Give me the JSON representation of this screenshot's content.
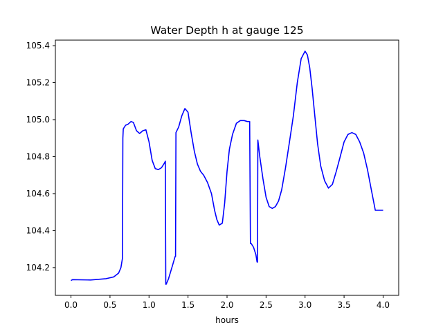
{
  "chart_data": {
    "type": "line",
    "title": "Water Depth h at gauge 125",
    "xlabel": "hours",
    "ylabel": "",
    "xlim": [
      -0.2,
      4.2
    ],
    "ylim": [
      104.05,
      105.43
    ],
    "xticks": [
      0.0,
      0.5,
      1.0,
      1.5,
      2.0,
      2.5,
      3.0,
      3.5,
      4.0
    ],
    "xtick_labels": [
      "0.0",
      "0.5",
      "1.0",
      "1.5",
      "2.0",
      "2.5",
      "3.0",
      "3.5",
      "4.0"
    ],
    "yticks": [
      104.2,
      104.4,
      104.6,
      104.8,
      105.0,
      105.2,
      105.4
    ],
    "ytick_labels": [
      "104.2",
      "104.4",
      "104.6",
      "104.8",
      "105.0",
      "105.2",
      "105.4"
    ],
    "grid": false,
    "legend": "none",
    "series": [
      {
        "color": "#0000ff",
        "x": [
          0.0,
          0.02,
          0.25,
          0.45,
          0.55,
          0.61,
          0.64,
          0.66,
          0.665,
          0.67,
          0.7,
          0.73,
          0.77,
          0.8,
          0.84,
          0.88,
          0.92,
          0.96,
          1.0,
          1.04,
          1.08,
          1.12,
          1.16,
          1.19,
          1.21,
          1.215,
          1.22,
          1.25,
          1.3,
          1.335,
          1.34,
          1.345,
          1.38,
          1.42,
          1.46,
          1.5,
          1.54,
          1.58,
          1.62,
          1.66,
          1.7,
          1.75,
          1.8,
          1.84,
          1.87,
          1.9,
          1.94,
          1.97,
          2.0,
          2.03,
          2.07,
          2.12,
          2.17,
          2.22,
          2.26,
          2.29,
          2.3,
          2.305,
          2.31,
          2.34,
          2.37,
          2.385,
          2.39,
          2.395,
          2.42,
          2.46,
          2.5,
          2.54,
          2.58,
          2.62,
          2.66,
          2.7,
          2.75,
          2.8,
          2.85,
          2.9,
          2.95,
          3.0,
          3.03,
          3.06,
          3.09,
          3.12,
          3.16,
          3.2,
          3.25,
          3.3,
          3.35,
          3.4,
          3.45,
          3.5,
          3.55,
          3.6,
          3.65,
          3.7,
          3.75,
          3.8,
          3.85,
          3.9,
          3.95,
          4.0
        ],
        "y": [
          104.13,
          104.135,
          104.133,
          104.14,
          104.15,
          104.17,
          104.2,
          104.25,
          104.9,
          104.95,
          104.97,
          104.975,
          104.99,
          104.985,
          104.94,
          104.925,
          104.94,
          104.945,
          104.88,
          104.78,
          104.735,
          104.73,
          104.74,
          104.76,
          104.775,
          104.11,
          104.11,
          104.14,
          104.21,
          104.26,
          104.26,
          104.93,
          104.96,
          105.02,
          105.06,
          105.04,
          104.93,
          104.83,
          104.76,
          104.72,
          104.7,
          104.66,
          104.6,
          104.51,
          104.46,
          104.43,
          104.44,
          104.55,
          104.72,
          104.84,
          104.92,
          104.98,
          104.995,
          104.995,
          104.99,
          104.99,
          104.33,
          104.33,
          104.33,
          104.31,
          104.27,
          104.23,
          104.23,
          104.89,
          104.8,
          104.68,
          104.58,
          104.53,
          104.52,
          104.53,
          104.56,
          104.62,
          104.74,
          104.88,
          105.02,
          105.2,
          105.33,
          105.37,
          105.35,
          105.28,
          105.17,
          105.04,
          104.87,
          104.75,
          104.67,
          104.63,
          104.65,
          104.72,
          104.8,
          104.88,
          104.92,
          104.93,
          104.92,
          104.88,
          104.82,
          104.73,
          104.62,
          104.51,
          104.51,
          104.51
        ]
      }
    ]
  }
}
